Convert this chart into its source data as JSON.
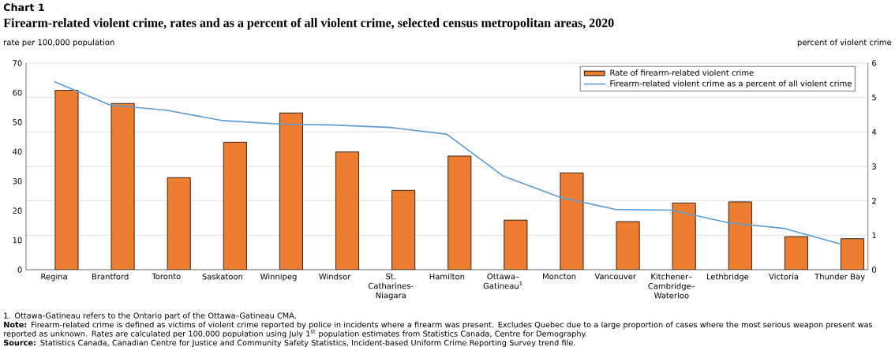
{
  "chart_data": {
    "type": "bar",
    "title": "Chart 1",
    "subtitle": "Firearm-related violent crime, rates and as a percent of all violent crime, selected census metropolitan areas, 2020",
    "ylabel": "rate per 100,000 population",
    "y2label": "percent of violent crime",
    "categories": [
      "Regina",
      "Brantford",
      "Toronto",
      "Saskatoon",
      "Winnipeg",
      "Windsor",
      "St. Catharines-Niagara",
      "Hamilton",
      "Ottawa–Gatineau$^{1}$",
      "Moncton",
      "Vancouver",
      "Kitchener–Cambridge–Waterloo",
      "Lethbridge",
      "Victoria",
      "Thunder Bay"
    ],
    "series": [
      {
        "name": "Rate of firearm-related violent crime",
        "color": "#ed7d31",
        "values": [
          60.8,
          56.3,
          31.2,
          43.2,
          53.1,
          39.9,
          26.9,
          38.5,
          16.8,
          32.8,
          16.3,
          22.6,
          23.0,
          11.2,
          10.5
        ]
      },
      {
        "name": "Firearm-related violent crime as a percent of all violent crime",
        "type": "line",
        "axis": "y2",
        "color": "#5b9bd5",
        "values": [
          5.46,
          4.78,
          4.63,
          4.33,
          4.23,
          4.2,
          4.13,
          3.93,
          2.72,
          2.11,
          1.75,
          1.73,
          1.37,
          1.2,
          0.75
        ]
      }
    ],
    "ylim": [
      0,
      70
    ],
    "yticks": [
      0,
      10,
      20,
      30,
      40,
      50,
      60,
      70
    ],
    "y2lim": [
      0,
      6
    ],
    "y2ticks": [
      0,
      1,
      2,
      3,
      4,
      5,
      6
    ],
    "grid": "y",
    "legend": "top right",
    "marker": "none",
    "line_style": "solid",
    "annotations": [
      "1. Ottawa-Gatineau refers to the Ontario part of the Ottawa–Gatineau CMA.",
      "**Note:** Firearm-related crime is defined as victims of violent crime reported by police in incidents where a firearm was present. Excludes Quebec due to a large proportion of cases where the most serious weapon present was reported as unknown. Rates are calculated per 100,000 population using July 1$^{st}$ population estimates from Statistics Canada, Centre for Demography.",
      "**Source:** Statistics Canada, Canadian Centre for Justice and Community Safety Statistics, Incident-based Uniform Crime Reporting Survey trend file."
    ]
  }
}
